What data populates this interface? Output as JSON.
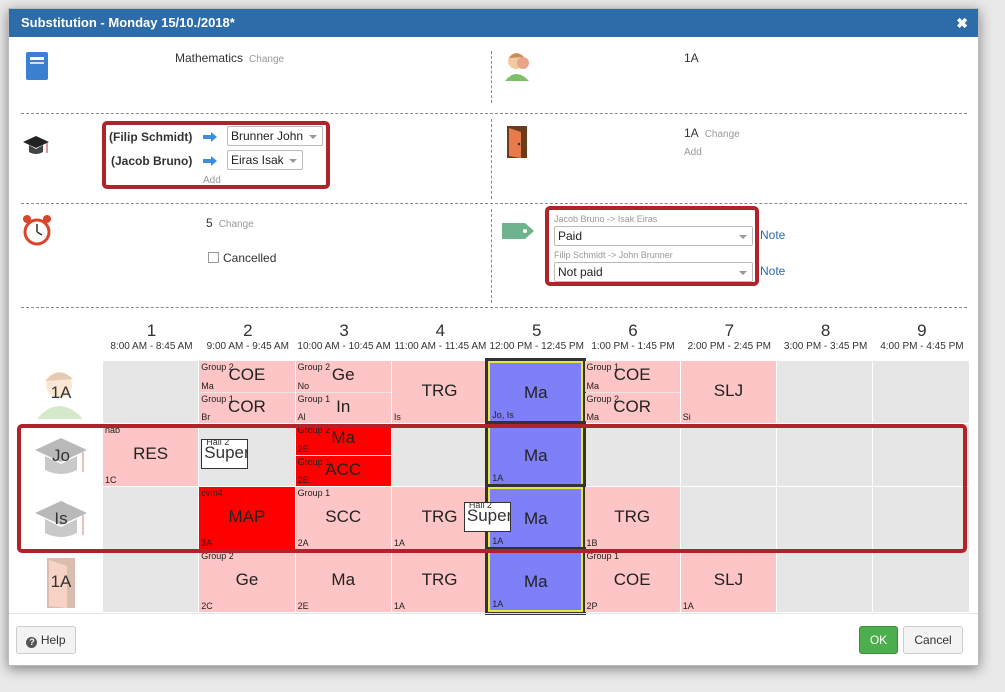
{
  "title": "Substitution - Monday 15/10./2018*",
  "close_icon": "close-icon",
  "subject": {
    "value": "Mathematics",
    "change": "Change"
  },
  "class_top": {
    "value": "1A"
  },
  "teachers": [
    {
      "from": "(Filip Schmidt)",
      "to": "Brunner John"
    },
    {
      "from": "(Jacob Bruno)",
      "to": "Eiras Isak"
    }
  ],
  "teachers_add": "Add",
  "room": {
    "value": "1A",
    "change": "Change",
    "add": "Add"
  },
  "period": {
    "value": "5",
    "change": "Change"
  },
  "cancelled_label": "Cancelled",
  "payments": [
    {
      "label": "Jacob Bruno -> Isak Eiras",
      "value": "Paid",
      "note": "Note"
    },
    {
      "label": "Filip Schmidt -> John Brunner",
      "value": "Not paid",
      "note": "Note"
    }
  ],
  "periods": [
    {
      "n": "1",
      "t": "8:00 AM - 8:45 AM"
    },
    {
      "n": "2",
      "t": "9:00 AM - 9:45 AM"
    },
    {
      "n": "3",
      "t": "10:00 AM - 10:45 AM"
    },
    {
      "n": "4",
      "t": "11:00 AM - 11:45 AM"
    },
    {
      "n": "5",
      "t": "12:00 PM - 12:45 PM"
    },
    {
      "n": "6",
      "t": "1:00 PM - 1:45 PM"
    },
    {
      "n": "7",
      "t": "2:00 PM - 2:45 PM"
    },
    {
      "n": "8",
      "t": "3:00 PM - 3:45 PM"
    },
    {
      "n": "9",
      "t": "4:00 PM - 4:45 PM"
    }
  ],
  "rows": [
    {
      "label": "1A",
      "icon": "student-icon"
    },
    {
      "label": "Jo",
      "icon": "graduation-cap-icon"
    },
    {
      "label": "Is",
      "icon": "graduation-cap-icon"
    },
    {
      "label": "1A",
      "icon": "door-icon"
    }
  ],
  "lessons": {
    "r0": {
      "p2a": {
        "big": "COE",
        "tl": "Group 2",
        "bl": "Ma"
      },
      "p2b": {
        "big": "COR",
        "tl": "Group 1",
        "bl": "Br"
      },
      "p3a": {
        "big": "Ge",
        "tl": "Group 2",
        "bl": "No"
      },
      "p3b": {
        "big": "In",
        "tl": "Group 1",
        "bl": "Al"
      },
      "p4": {
        "big": "TRG",
        "bl": "Is"
      },
      "p5": {
        "big": "Ma",
        "bl": "Jo, Is"
      },
      "p6a": {
        "big": "COE",
        "tl": "Group 1",
        "bl": "Ma"
      },
      "p6b": {
        "big": "COR",
        "tl": "Group 2",
        "bl": "Ma"
      },
      "p7": {
        "big": "SLJ",
        "bl": "Si"
      }
    },
    "r1": {
      "p1": {
        "big": "RES",
        "tl": "nab",
        "bl": "1C"
      },
      "p2sup": {
        "big": "Super",
        "tl": "Hall 2"
      },
      "p3a": {
        "big": "Ma",
        "tl": "Group 2",
        "bl": "2E"
      },
      "p3b": {
        "big": "ACC",
        "tl": "Group 1",
        "bl": "2E"
      },
      "p5": {
        "big": "Ma",
        "bl": "1A"
      }
    },
    "r2": {
      "p2": {
        "big": "MAP",
        "tl": "cvm4",
        "bl": "3A"
      },
      "p3": {
        "big": "SCC",
        "tl": "Group 1",
        "bl": "2A"
      },
      "p4": {
        "big": "TRG",
        "bl": "1A"
      },
      "p4sup": {
        "big": "Super",
        "tl": "Hall 2"
      },
      "p5": {
        "big": "Ma",
        "bl": "1A"
      },
      "p6": {
        "big": "TRG",
        "bl": "1B"
      }
    },
    "r3": {
      "p2": {
        "big": "Ge",
        "tl": "Group 2",
        "bl": "2C"
      },
      "p3": {
        "big": "Ma",
        "bl": "2E"
      },
      "p4": {
        "big": "TRG",
        "bl": "1A"
      },
      "p5": {
        "big": "Ma",
        "bl": "1A"
      },
      "p6": {
        "big": "COE",
        "tl": "Group 1",
        "bl": "2P"
      },
      "p7": {
        "big": "SLJ",
        "bl": "1A"
      }
    }
  },
  "footer": {
    "help": "Help",
    "ok": "OK",
    "cancel": "Cancel"
  }
}
